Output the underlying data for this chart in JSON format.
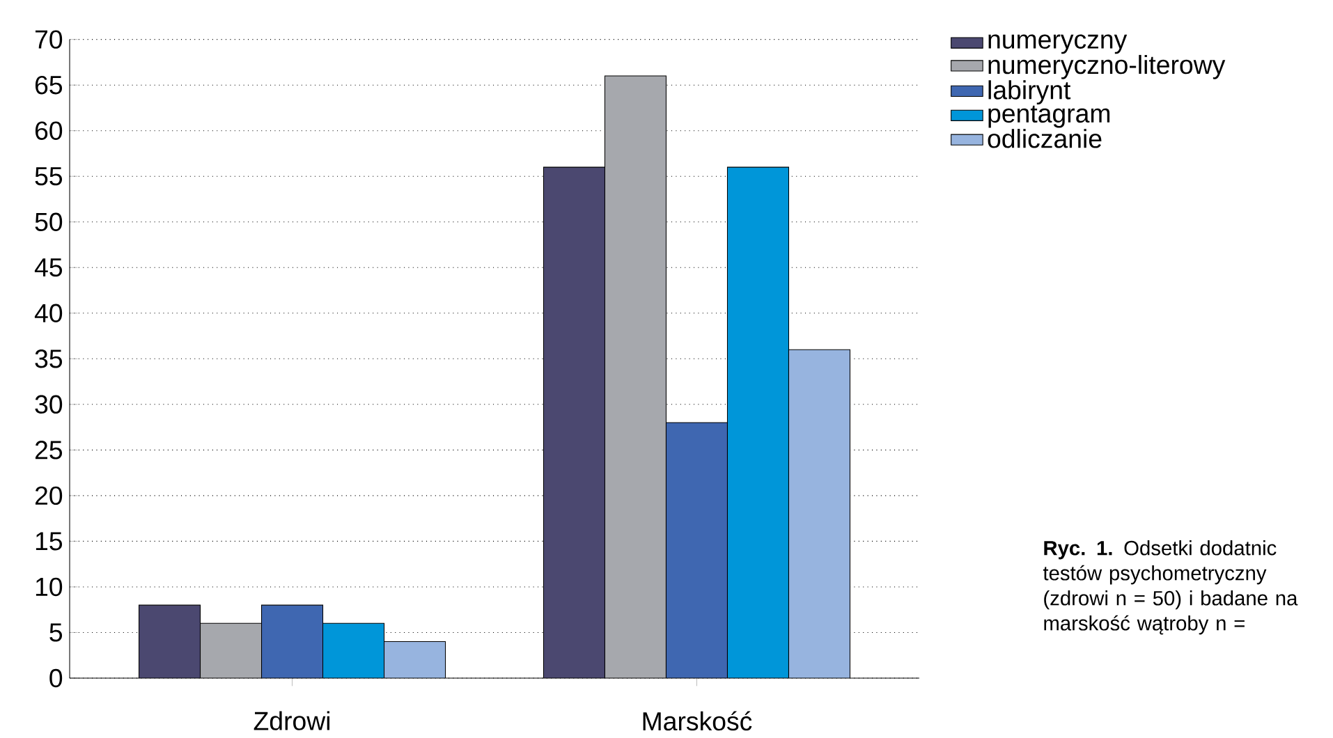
{
  "chart_data": {
    "type": "bar",
    "categories": [
      "Zdrowi",
      "Marskość"
    ],
    "series": [
      {
        "name": "numeryczny",
        "color": "#4b4870",
        "values": [
          8,
          56
        ]
      },
      {
        "name": "numeryczno-literowy",
        "color": "#a6a8ad",
        "values": [
          6,
          66
        ]
      },
      {
        "name": "labirynt",
        "color": "#3f67b1",
        "values": [
          8,
          28
        ]
      },
      {
        "name": "pentagram",
        "color": "#0096d9",
        "values": [
          6,
          56
        ]
      },
      {
        "name": "odliczanie",
        "color": "#97b4df",
        "values": [
          4,
          36
        ]
      }
    ],
    "ylim": [
      0,
      70
    ],
    "yticks": [
      0,
      5,
      10,
      15,
      20,
      25,
      30,
      35,
      40,
      45,
      50,
      55,
      60,
      65,
      70
    ],
    "grid": "y",
    "legend": "top right",
    "annotations": [
      "**Ryc. 1.** Odsetki dodatnic testów psychometryczny (zdrowi n = 50) i badane na marskość wątroby n ="
    ]
  }
}
